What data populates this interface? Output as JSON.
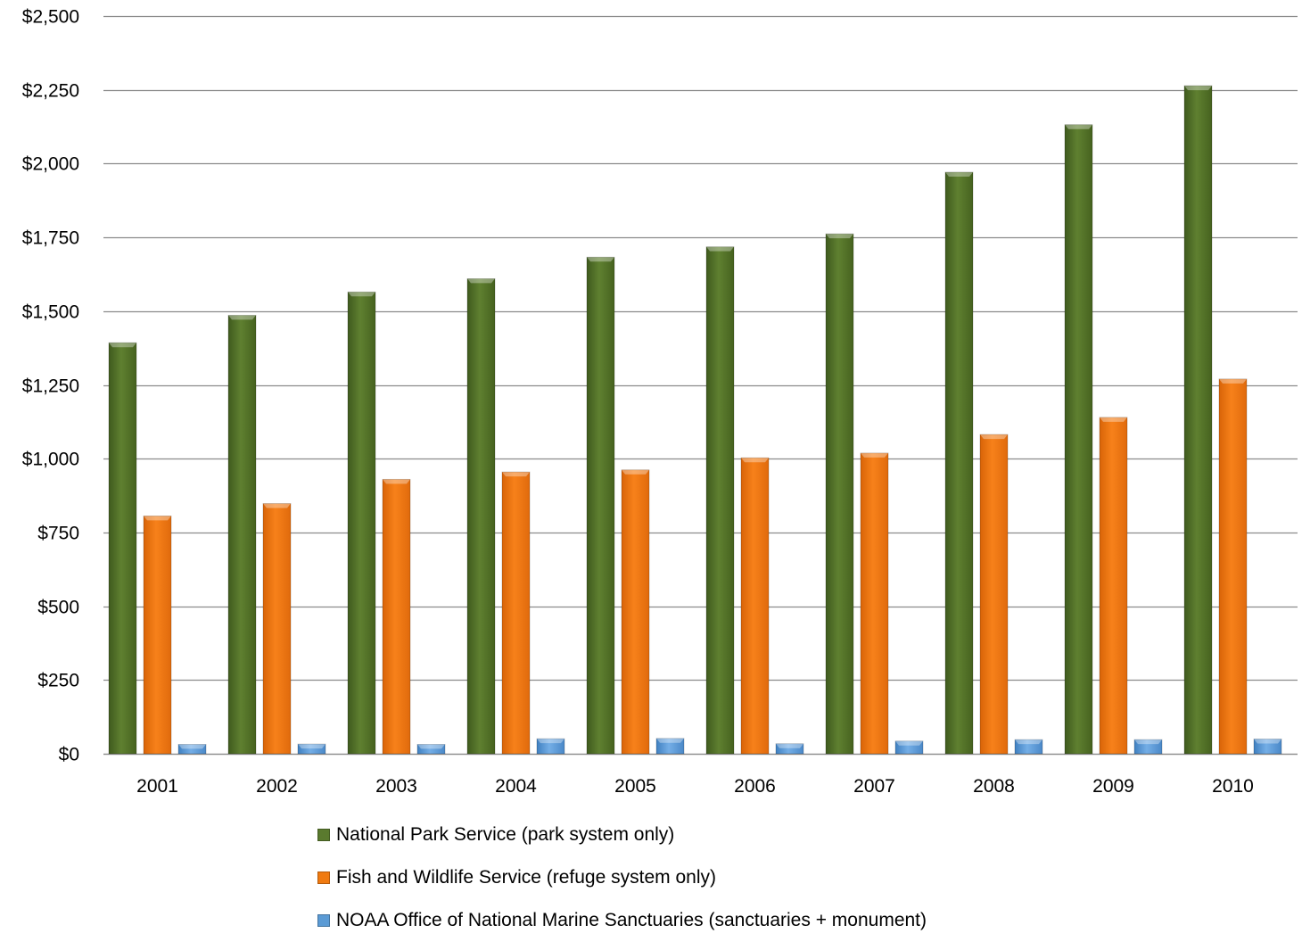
{
  "chart_data": {
    "type": "bar",
    "title": "",
    "xlabel": "",
    "ylabel": "",
    "categories": [
      "2001",
      "2002",
      "2003",
      "2004",
      "2005",
      "2006",
      "2007",
      "2008",
      "2009",
      "2010"
    ],
    "series": [
      {
        "name": "National Park Service (park system only)",
        "color": "#5a7a2e",
        "values": [
          1393,
          1486,
          1565,
          1610,
          1683,
          1718,
          1762,
          1971,
          2132,
          2264
        ]
      },
      {
        "name": "Fish and Wildlife Service (refuge system only)",
        "color": "#f07a10",
        "values": [
          806,
          848,
          930,
          955,
          962,
          1003,
          1019,
          1082,
          1140,
          1270
        ]
      },
      {
        "name": "NOAA Office of National Marine Sanctuaries (sanctuaries + monument)",
        "color": "#5b9bd5",
        "values": [
          32,
          33,
          32,
          51,
          52,
          34,
          43,
          48,
          48,
          50
        ]
      }
    ],
    "ylim": [
      0,
      2500
    ],
    "yticks": [
      0,
      250,
      500,
      750,
      1000,
      1250,
      1500,
      1750,
      2000,
      2250,
      2500
    ],
    "ytick_labels": [
      "$0",
      "$250",
      "$500",
      "$750",
      "$1,000",
      "$1,250",
      "$1,500",
      "$1,750",
      "$2,000",
      "$2,250",
      "$2,500"
    ],
    "grid": true,
    "legend_position": "bottom"
  }
}
